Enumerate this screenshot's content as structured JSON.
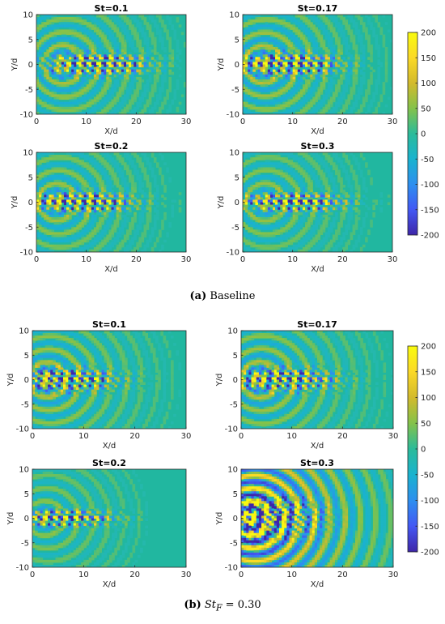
{
  "chart_data": [
    {
      "type": "heatmap",
      "group": "a",
      "panels": [
        {
          "title": "St=0.1",
          "xlabel": "X/d",
          "ylabel": "Y/d",
          "xlim": [
            0,
            30
          ],
          "ylim": [
            -10,
            10
          ],
          "xticks": [
            "0",
            "10",
            "20",
            "30"
          ],
          "yticks": [
            "10",
            "5",
            "0",
            "-5",
            "-10"
          ],
          "peak_x": 12,
          "spread": 0.55
        },
        {
          "title": "St=0.17",
          "xlabel": "X/d",
          "ylabel": "Y/d",
          "xlim": [
            0,
            30
          ],
          "ylim": [
            -10,
            10
          ],
          "xticks": [
            "0",
            "10",
            "20",
            "30"
          ],
          "yticks": [
            "10",
            "5",
            "0",
            "-5",
            "-10"
          ],
          "peak_x": 9,
          "spread": 0.6
        },
        {
          "title": "St=0.2",
          "xlabel": "X/d",
          "ylabel": "Y/d",
          "xlim": [
            0,
            30
          ],
          "ylim": [
            -10,
            10
          ],
          "xticks": [
            "0",
            "10",
            "20",
            "30"
          ],
          "yticks": [
            "10",
            "5",
            "0",
            "-5",
            "-10"
          ],
          "peak_x": 9,
          "spread": 0.5
        },
        {
          "title": "St=0.3",
          "xlabel": "X/d",
          "ylabel": "Y/d",
          "xlim": [
            0,
            30
          ],
          "ylim": [
            -10,
            10
          ],
          "xticks": [
            "0",
            "10",
            "20",
            "30"
          ],
          "yticks": [
            "10",
            "5",
            "0",
            "-5",
            "-10"
          ],
          "peak_x": 10,
          "spread": 0.45
        }
      ],
      "colorbar": {
        "range": [
          -200,
          200
        ],
        "ticks": [
          "200",
          "150",
          "100",
          "50",
          "0",
          "-50",
          "-100",
          "-150",
          "-200"
        ]
      },
      "caption_label": "(a)",
      "caption_text": "Baseline"
    },
    {
      "type": "heatmap",
      "group": "b",
      "panels": [
        {
          "title": "St=0.1",
          "xlabel": "X/d",
          "ylabel": "Y/d",
          "xlim": [
            0,
            30
          ],
          "ylim": [
            -10,
            10
          ],
          "xticks": [
            "0",
            "10",
            "20",
            "30"
          ],
          "yticks": [
            "10",
            "5",
            "0",
            "-5",
            "-10"
          ],
          "peak_x": 6,
          "spread": 0.6
        },
        {
          "title": "St=0.17",
          "xlabel": "X/d",
          "ylabel": "Y/d",
          "xlim": [
            0,
            30
          ],
          "ylim": [
            -10,
            10
          ],
          "xticks": [
            "0",
            "10",
            "20",
            "30"
          ],
          "yticks": [
            "10",
            "5",
            "0",
            "-5",
            "-10"
          ],
          "peak_x": 8,
          "spread": 0.6
        },
        {
          "title": "St=0.2",
          "xlabel": "X/d",
          "ylabel": "Y/d",
          "xlim": [
            0,
            30
          ],
          "ylim": [
            -10,
            10
          ],
          "xticks": [
            "0",
            "10",
            "20",
            "30"
          ],
          "yticks": [
            "10",
            "5",
            "0",
            "-5",
            "-10"
          ],
          "peak_x": 5,
          "spread": 0.4
        },
        {
          "title": "St=0.3",
          "xlabel": "X/d",
          "ylabel": "Y/d",
          "xlim": [
            0,
            30
          ],
          "ylim": [
            -10,
            10
          ],
          "xticks": [
            "0",
            "10",
            "20",
            "30"
          ],
          "yticks": [
            "10",
            "5",
            "0",
            "-5",
            "-10"
          ],
          "peak_x": 4,
          "spread": 1.6
        }
      ],
      "colorbar": {
        "range": [
          -200,
          200
        ],
        "ticks": [
          "200",
          "150",
          "100",
          "50",
          "0",
          "-50",
          "-100",
          "-150",
          "-200"
        ]
      },
      "caption_label": "(b)",
      "caption_text": "St",
      "caption_sub": "F",
      "caption_rest": " = 0.30"
    }
  ],
  "colors": {
    "colormap": [
      "#3e26a8",
      "#4358f4",
      "#2d8fef",
      "#19b3cf",
      "#2bbb9a",
      "#84c24a",
      "#d3ba2c",
      "#fbd927",
      "#f9fb0e"
    ],
    "background_field": "#21b7a0"
  }
}
